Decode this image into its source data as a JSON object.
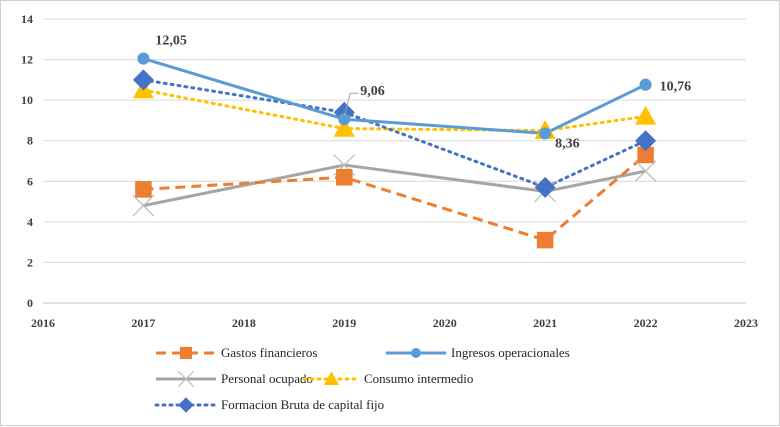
{
  "chart_data": {
    "type": "line",
    "title": "",
    "xlabel": "",
    "ylabel": "",
    "xlim": [
      2016,
      2023
    ],
    "ylim": [
      0,
      14
    ],
    "x_ticks": [
      "2016",
      "2017",
      "2018",
      "2019",
      "2020",
      "2021",
      "2022",
      "2023"
    ],
    "y_ticks": [
      "0",
      "2",
      "4",
      "6",
      "8",
      "10",
      "12",
      "14"
    ],
    "grid": true,
    "legend_position": "bottom",
    "series": [
      {
        "name": "Gastos financieros",
        "x": [
          2017,
          2019,
          2021,
          2022
        ],
        "values": [
          5.6,
          6.2,
          3.1,
          7.3
        ],
        "color": "#ED7D31",
        "style": "dashed",
        "marker": "square",
        "data_labels": [
          null,
          null,
          null,
          null
        ]
      },
      {
        "name": "Ingresos operacionales",
        "x": [
          2017,
          2019,
          2021,
          2022
        ],
        "values": [
          12.05,
          9.06,
          8.36,
          10.76
        ],
        "color": "#5B9BD5",
        "style": "solid",
        "marker": "circle",
        "data_labels": [
          "12,05",
          "9,06",
          "8,36",
          "10,76"
        ]
      },
      {
        "name": "Personal ocupado",
        "x": [
          2017,
          2019,
          2021,
          2022
        ],
        "values": [
          4.8,
          6.8,
          5.5,
          6.5
        ],
        "color": "#A5A5A5",
        "style": "solid",
        "marker": "x",
        "data_labels": [
          null,
          null,
          null,
          null
        ]
      },
      {
        "name": "Consumo intermedio",
        "x": [
          2017,
          2019,
          2021,
          2022
        ],
        "values": [
          10.5,
          8.6,
          8.5,
          9.2
        ],
        "color": "#FFC000",
        "style": "dotted",
        "marker": "triangle",
        "data_labels": [
          null,
          null,
          null,
          null
        ]
      },
      {
        "name": "Formacion Bruta de capital fijo",
        "x": [
          2017,
          2019,
          2021,
          2022
        ],
        "values": [
          11.0,
          9.4,
          5.7,
          8.0
        ],
        "color": "#4472C4",
        "style": "dotted",
        "marker": "diamond",
        "data_labels": [
          null,
          null,
          null,
          null
        ]
      }
    ]
  }
}
